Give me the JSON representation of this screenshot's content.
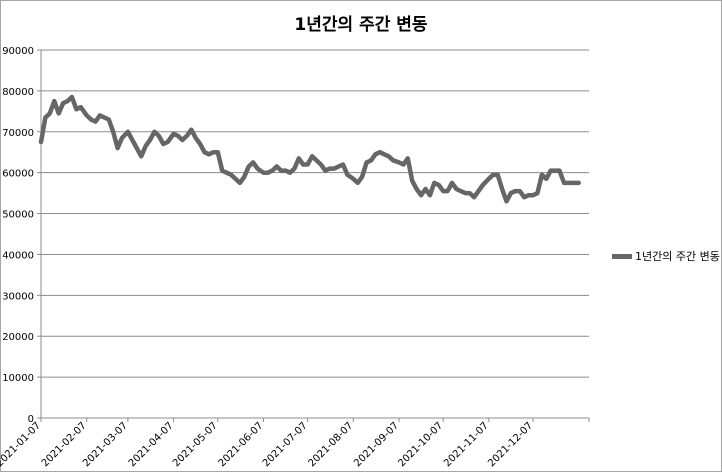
{
  "chart_data": {
    "type": "line",
    "title": "1년간의 주간 변동",
    "xlabel": "",
    "ylabel": "",
    "ylim": [
      0,
      90000
    ],
    "yticks": [
      0,
      10000,
      20000,
      30000,
      40000,
      50000,
      60000,
      70000,
      80000,
      90000
    ],
    "x_tick_labels": [
      "2021-01-07",
      "2021-02-07",
      "2021-03-07",
      "2021-04-07",
      "2021-05-07",
      "2021-06-07",
      "2021-07-07",
      "2021-08-07",
      "2021-09-07",
      "2021-10-07",
      "2021-11-07",
      "2021-12-07"
    ],
    "grid": "horizontal",
    "legend_position": "right",
    "line_color": "#666666",
    "series": [
      {
        "name": "1년간의 주간 변동",
        "x": [
          "2021-01-07",
          "2021-01-10",
          "2021-01-13",
          "2021-01-16",
          "2021-01-19",
          "2021-01-22",
          "2021-01-25",
          "2021-01-28",
          "2021-01-31",
          "2021-02-03",
          "2021-02-07",
          "2021-02-10",
          "2021-02-13",
          "2021-02-16",
          "2021-02-19",
          "2021-02-22",
          "2021-02-25",
          "2021-02-28",
          "2021-03-03",
          "2021-03-07",
          "2021-03-10",
          "2021-03-13",
          "2021-03-16",
          "2021-03-19",
          "2021-03-22",
          "2021-03-25",
          "2021-03-28",
          "2021-03-31",
          "2021-04-03",
          "2021-04-07",
          "2021-04-10",
          "2021-04-13",
          "2021-04-16",
          "2021-04-19",
          "2021-04-22",
          "2021-04-25",
          "2021-04-28",
          "2021-05-01",
          "2021-05-04",
          "2021-05-07",
          "2021-05-10",
          "2021-05-13",
          "2021-05-16",
          "2021-05-19",
          "2021-05-22",
          "2021-05-25",
          "2021-05-28",
          "2021-05-31",
          "2021-06-03",
          "2021-06-07",
          "2021-06-10",
          "2021-06-13",
          "2021-06-16",
          "2021-06-19",
          "2021-06-22",
          "2021-06-25",
          "2021-06-28",
          "2021-07-01",
          "2021-07-04",
          "2021-07-07",
          "2021-07-10",
          "2021-07-13",
          "2021-07-16",
          "2021-07-19",
          "2021-07-22",
          "2021-07-25",
          "2021-07-28",
          "2021-07-31",
          "2021-08-03",
          "2021-08-07",
          "2021-08-10",
          "2021-08-13",
          "2021-08-16",
          "2021-08-19",
          "2021-08-22",
          "2021-08-25",
          "2021-08-28",
          "2021-08-31",
          "2021-09-03",
          "2021-09-07",
          "2021-09-10",
          "2021-09-13",
          "2021-09-16",
          "2021-09-19",
          "2021-09-22",
          "2021-09-25",
          "2021-09-28",
          "2021-10-01",
          "2021-10-04",
          "2021-10-07",
          "2021-10-10",
          "2021-10-13",
          "2021-10-16",
          "2021-10-19",
          "2021-10-22",
          "2021-10-25",
          "2021-10-28",
          "2021-10-31",
          "2021-11-03",
          "2021-11-07",
          "2021-11-10",
          "2021-11-13",
          "2021-11-16",
          "2021-11-19",
          "2021-11-22",
          "2021-11-25",
          "2021-11-28",
          "2021-12-01",
          "2021-12-04",
          "2021-12-07",
          "2021-12-10",
          "2021-12-13",
          "2021-12-16",
          "2021-12-19",
          "2021-12-22",
          "2021-12-25",
          "2021-12-28",
          "2022-01-01",
          "2022-01-04",
          "2022-01-07"
        ],
        "values": [
          67500,
          73500,
          74500,
          77500,
          74500,
          77000,
          77500,
          78500,
          75500,
          76000,
          74000,
          73000,
          72500,
          74000,
          73500,
          73000,
          70000,
          66000,
          68500,
          70000,
          68000,
          66000,
          64000,
          66500,
          68000,
          70000,
          69000,
          67000,
          67500,
          69500,
          69000,
          68000,
          69000,
          70500,
          68500,
          67000,
          65000,
          64500,
          65000,
          65000,
          60500,
          60000,
          59500,
          58500,
          57500,
          59000,
          61500,
          62500,
          61000,
          60000,
          60000,
          60500,
          61500,
          60500,
          60500,
          60000,
          61000,
          63500,
          62000,
          62000,
          64000,
          63000,
          62000,
          60500,
          61000,
          61000,
          61500,
          62000,
          59500,
          58500,
          57500,
          59000,
          62500,
          63000,
          64500,
          65000,
          64500,
          64000,
          63000,
          62500,
          62000,
          63500,
          58000,
          56000,
          54500,
          56000,
          54500,
          57500,
          57000,
          55500,
          55500,
          57500,
          56000,
          55500,
          55000,
          55000,
          54000,
          55500,
          57000,
          58500,
          59500,
          59500,
          56000,
          53000,
          55000,
          55500,
          55500,
          54000,
          54500,
          54500,
          55000,
          59500,
          58500,
          60500,
          60500,
          60500,
          57500,
          57500,
          57500,
          57500
        ]
      }
    ]
  }
}
